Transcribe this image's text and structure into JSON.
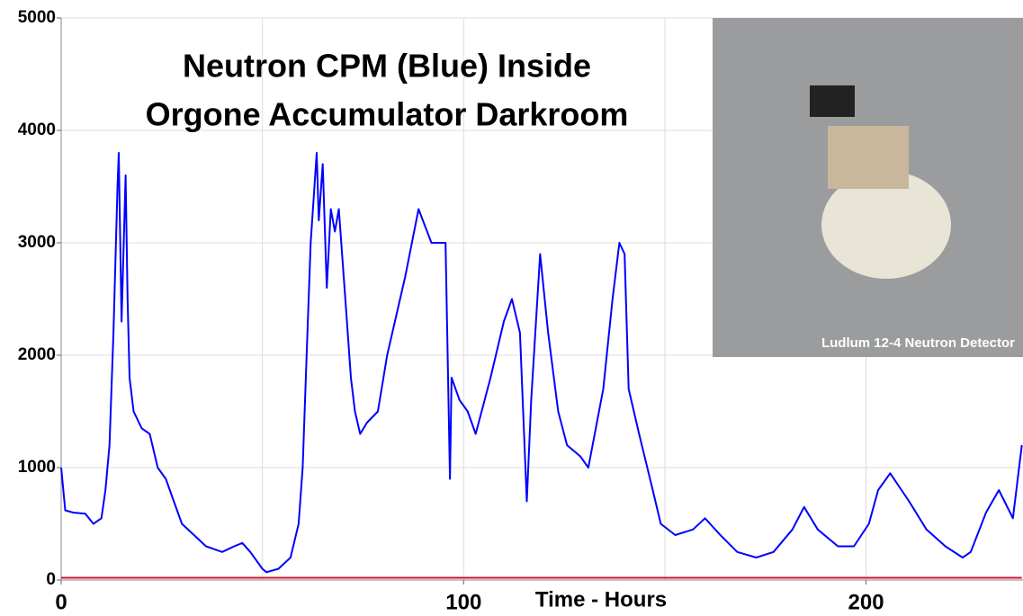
{
  "chart_data": {
    "type": "line",
    "title": [
      "Neutron CPM (Blue) Inside",
      "Orgone Accumulator Darkroom"
    ],
    "x_label": "Time - Hours",
    "image_caption": "Ludlum 12-4 Neutron Detector",
    "xlim": [
      0,
      239
    ],
    "xticks": [
      0,
      100,
      200
    ],
    "x_gridlines": [
      50,
      100,
      150,
      200
    ],
    "ylim": [
      0,
      5000
    ],
    "yticks": [
      0,
      1000,
      2000,
      3000,
      4000,
      5000
    ],
    "grid": true,
    "series": [
      {
        "color": "#0000ff",
        "x": [
          0,
          1,
          3,
          6,
          8,
          10,
          11,
          12,
          13,
          14,
          14.3,
          15,
          16,
          16.5,
          17,
          18,
          20,
          22,
          24,
          26,
          28,
          30,
          33,
          36,
          40,
          43,
          45,
          47,
          50,
          51,
          54,
          57,
          59,
          60,
          61,
          62,
          63.5,
          64,
          65,
          66,
          67,
          68,
          69,
          70,
          71,
          72,
          73,
          74.3,
          76,
          78.7,
          81,
          85.5,
          88.8,
          92,
          95.5,
          96.6,
          97,
          99,
          101,
          103,
          106.7,
          110,
          112,
          114,
          115.7,
          116.8,
          119,
          121,
          123.5,
          125.7,
          129,
          131,
          134.7,
          137,
          138.7,
          140,
          141,
          143.6,
          147,
          149,
          152.6,
          157,
          160,
          163.8,
          168,
          172.7,
          177,
          181.7,
          184.6,
          188,
          193,
          197,
          200.7,
          203,
          206,
          210.7,
          215,
          219.7,
          224,
          226,
          229.8,
          233,
          236.5,
          238.7
        ],
        "values": [
          1000,
          620,
          600,
          590,
          500,
          550,
          800,
          1200,
          2200,
          3500,
          3800,
          2300,
          3600,
          2500,
          1800,
          1500,
          1350,
          1300,
          1000,
          900,
          700,
          500,
          400,
          300,
          250,
          300,
          330,
          250,
          100,
          70,
          100,
          200,
          500,
          1000,
          2000,
          3000,
          3800,
          3200,
          3700,
          2600,
          3300,
          3100,
          3300,
          2800,
          2300,
          1800,
          1500,
          1300,
          1400,
          1500,
          2000,
          2700,
          3300,
          3000,
          3000,
          900,
          1800,
          1600,
          1500,
          1300,
          1800,
          2300,
          2500,
          2200,
          700,
          1600,
          2900,
          2200,
          1500,
          1200,
          1100,
          1000,
          1700,
          2500,
          3000,
          2900,
          1700,
          1300,
          800,
          500,
          400,
          450,
          550,
          400,
          250,
          200,
          250,
          450,
          650,
          450,
          300,
          300,
          500,
          800,
          950,
          700,
          450,
          300,
          200,
          250,
          600,
          800,
          550,
          1200
        ]
      },
      {
        "color": "#d0103a",
        "x": [
          0,
          238.7
        ],
        "values": [
          20,
          20
        ]
      }
    ]
  }
}
